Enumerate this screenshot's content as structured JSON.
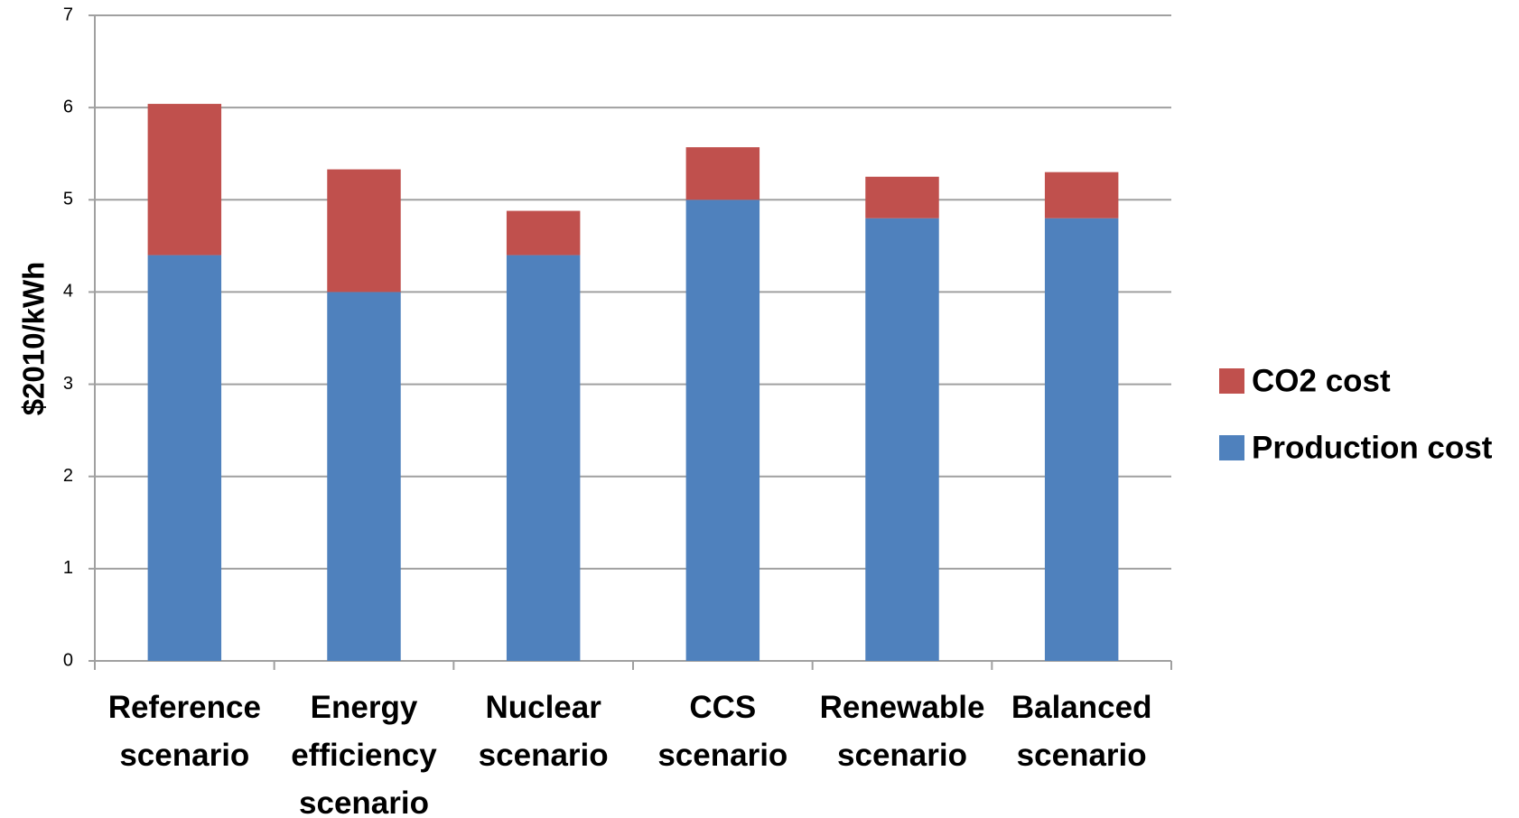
{
  "chart_data": {
    "type": "stacked_bar",
    "ylabel": "$2010/kWh",
    "categories": [
      "Reference scenario",
      "Energy efficiency scenario",
      "Nuclear scenario",
      "CCS scenario",
      "Renewable scenario",
      "Balanced scenario"
    ],
    "series": [
      {
        "name": "Production cost",
        "color": "#4f81bd",
        "values": [
          4.4,
          4.0,
          4.4,
          5.0,
          4.8,
          4.8
        ]
      },
      {
        "name": "CO2 cost",
        "color": "#c0504d",
        "values": [
          1.64,
          1.33,
          0.48,
          0.57,
          0.45,
          0.5
        ]
      }
    ],
    "ylim": [
      0,
      7
    ],
    "yticks": [
      0,
      1,
      2,
      3,
      4,
      5,
      6,
      7
    ],
    "grid": true,
    "legend": "right"
  }
}
